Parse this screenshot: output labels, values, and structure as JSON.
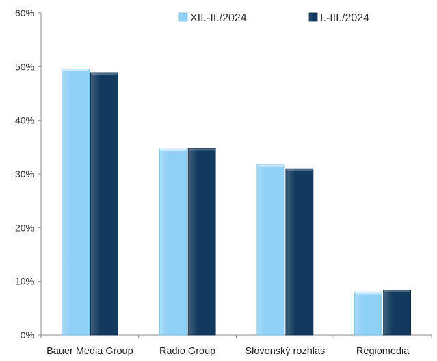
{
  "chart_data": {
    "type": "bar",
    "categories": [
      "Bauer Media Group",
      "Radio Group",
      "Slovenský rozhlas",
      "Regiomedia"
    ],
    "series": [
      {
        "name": "XII.-II./2024",
        "values": [
          49.6,
          34.7,
          31.7,
          8.0
        ],
        "color": "#8fd0f7"
      },
      {
        "name": "I.-III./2024",
        "values": [
          48.9,
          34.8,
          31.0,
          8.3
        ],
        "color": "#123a5e"
      }
    ],
    "ylim": [
      0,
      60
    ],
    "yticks": [
      0,
      10,
      20,
      30,
      40,
      50,
      60
    ],
    "ytick_format": "percent",
    "title": "",
    "xlabel": "",
    "ylabel": "",
    "grid": false,
    "legend_position": "top-right"
  }
}
